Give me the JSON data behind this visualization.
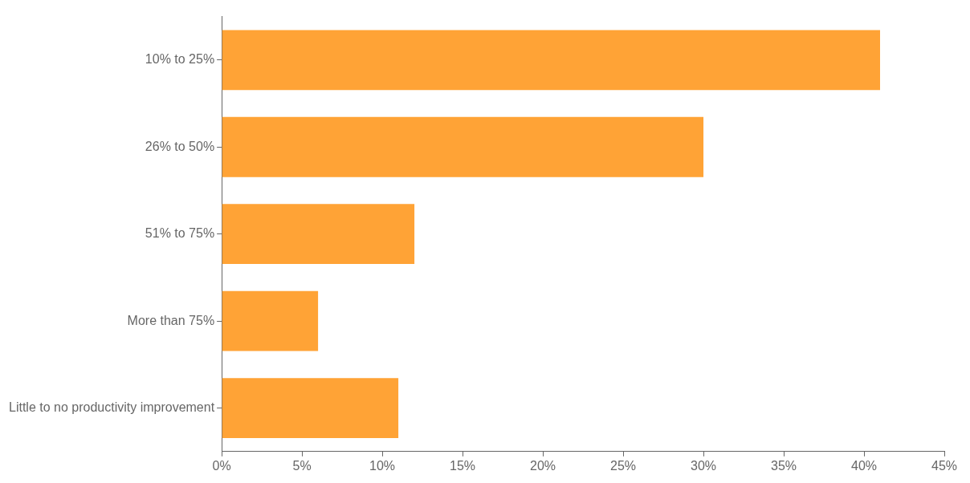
{
  "chart_data": {
    "type": "bar",
    "orientation": "horizontal",
    "categories": [
      "10% to 25%",
      "26% to 50%",
      "51% to 75%",
      "More than 75%",
      "Little to no productivity improvement"
    ],
    "values": [
      41,
      30,
      12,
      6,
      11
    ],
    "color": "#ffa336",
    "xlim": [
      0,
      45
    ],
    "xticks": [
      {
        "value": 0,
        "label": "0%"
      },
      {
        "value": 5,
        "label": "5%"
      },
      {
        "value": 10,
        "label": "10%"
      },
      {
        "value": 15,
        "label": "15%"
      },
      {
        "value": 20,
        "label": "20%"
      },
      {
        "value": 25,
        "label": "25%"
      },
      {
        "value": 30,
        "label": "30%"
      },
      {
        "value": 35,
        "label": "35%"
      },
      {
        "value": 40,
        "label": "40%"
      },
      {
        "value": 45,
        "label": "45%"
      }
    ],
    "grid": false,
    "legend": false
  }
}
